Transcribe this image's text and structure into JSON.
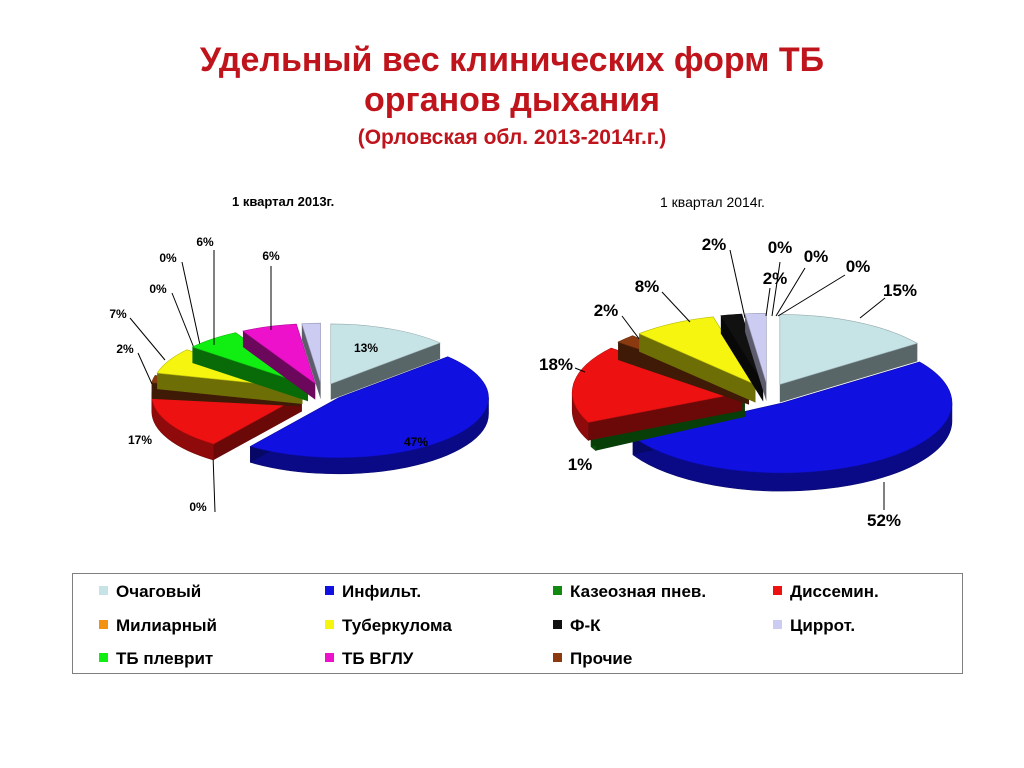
{
  "title": {
    "line1": "Удельный вес клинических форм ТБ",
    "line2": "органов дыхания",
    "line3": "(Орловская обл. 2013-2014г.г.)"
  },
  "legend": [
    {
      "label": "Очаговый",
      "color": "#c6e3e6"
    },
    {
      "label": "Инфильт.",
      "color": "#1010e0"
    },
    {
      "label": "Казеозная пнев.",
      "color": "#128a12"
    },
    {
      "label": "Диссемин.",
      "color": "#ee1111"
    },
    {
      "label": "Милиарный",
      "color": "#f2920f"
    },
    {
      "label": "Туберкулома",
      "color": "#f5f50f"
    },
    {
      "label": "Ф-К",
      "color": "#111111"
    },
    {
      "label": "Циррот.",
      "color": "#ccccf2"
    },
    {
      "label": "ТБ плеврит",
      "color": "#11ee11"
    },
    {
      "label": "ТБ ВГЛУ",
      "color": "#ee11cc"
    },
    {
      "label": "Прочие",
      "color": "#8b3a0f"
    }
  ],
  "chart_data": [
    {
      "type": "pie",
      "title": "1 квартал 2013г.",
      "style": "3d-exploded",
      "slices": [
        {
          "name": "Очаговый",
          "value": 13,
          "label": "13%"
        },
        {
          "name": "Инфильт.",
          "value": 47,
          "label": "47%"
        },
        {
          "name": "Казеозная пнев.",
          "value": 0,
          "label": "0%"
        },
        {
          "name": "Диссемин.",
          "value": 17,
          "label": "17%"
        },
        {
          "name": "Прочие",
          "value": 2,
          "label": "2%"
        },
        {
          "name": "Туберкулома",
          "value": 7,
          "label": "7%"
        },
        {
          "name": "Ф-К",
          "value": 0,
          "label": "0%"
        },
        {
          "name": "Милиарный",
          "value": 0,
          "label": "0%"
        },
        {
          "name": "ТБ плеврит",
          "value": 6,
          "label": "6%"
        },
        {
          "name": "ТБ ВГЛУ",
          "value": 6,
          "label": "6%"
        },
        {
          "name": "Циррот.",
          "value": 2,
          "label": ""
        }
      ]
    },
    {
      "type": "pie",
      "title": "1 квартал 2014г.",
      "style": "3d-exploded",
      "slices": [
        {
          "name": "Очаговый",
          "value": 15,
          "label": "15%"
        },
        {
          "name": "Инфильт.",
          "value": 52,
          "label": "52%"
        },
        {
          "name": "Казеозная пнев.",
          "value": 1,
          "label": "1%"
        },
        {
          "name": "Диссемин.",
          "value": 18,
          "label": "18%"
        },
        {
          "name": "Прочие",
          "value": 2,
          "label": "2%"
        },
        {
          "name": "Туберкулома",
          "value": 8,
          "label": "8%"
        },
        {
          "name": "Ф-К",
          "value": 2,
          "label": "2%"
        },
        {
          "name": "Милиарный",
          "value": 0,
          "label": "0%"
        },
        {
          "name": "ТБ плеврит",
          "value": 0,
          "label": "0%"
        },
        {
          "name": "ТБ ВГЛУ",
          "value": 0,
          "label": "0%"
        },
        {
          "name": "Циррот.",
          "value": 2,
          "label": "2%"
        }
      ]
    }
  ]
}
